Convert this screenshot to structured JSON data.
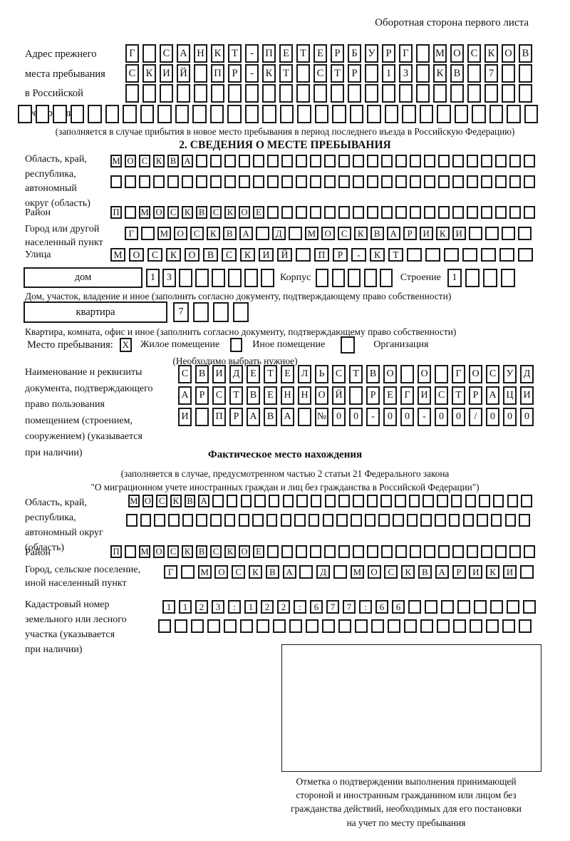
{
  "page": {
    "header_note": "Оборотная сторона первого листа"
  },
  "prev_address": {
    "label_lines": [
      "Адрес прежнего",
      "места пребывания",
      "в Российской",
      "Федерации"
    ],
    "rows": [
      {
        "text": "Г САНКТ-ПЕТЕРБУРГ МОСКОВ",
        "len": 24
      },
      {
        "text": "СКИЙ ПР-КТ СТР 13 КВ 7",
        "len": 24
      },
      {
        "text": "",
        "len": 24
      },
      {
        "text": "",
        "len": 30
      }
    ],
    "note": "(заполняется в случае прибытия в новое место пребывания в период последнего въезда в Российскую Федерацию)"
  },
  "section2": {
    "title": "2. СВЕДЕНИЯ О МЕСТЕ ПРЕБЫВАНИЯ",
    "region": {
      "label_lines": [
        "Область, край,",
        "республика,",
        "автономный",
        "округ (область)"
      ],
      "rows": [
        {
          "text": "МОСКВА",
          "len": 30
        },
        {
          "text": "",
          "len": 30
        }
      ]
    },
    "district": {
      "label": "Район",
      "row": {
        "text": "П МОСКВСКОЕ",
        "len": 30
      }
    },
    "city": {
      "label_lines": [
        "Город или другой",
        "населенный пункт"
      ],
      "row": {
        "text": "Г МОСКВА Д МОСКВАРИКИ",
        "len": 25
      }
    },
    "street": {
      "label": "Улица",
      "row": {
        "text": "МОСКОВСКИЙ ПР-КТ",
        "len": 23
      }
    },
    "house": {
      "box_label": "дом",
      "row": {
        "text": "13",
        "len": 8
      },
      "korpus_label": "Корпус",
      "korpus_row": {
        "text": "",
        "len": 5
      },
      "stroenie_label": "Строение",
      "stroenie_row": {
        "text": "1",
        "len": 4
      },
      "note": "Дом, участок, владение и иное (заполнить согласно документу, подтверждающему право собственности)"
    },
    "apartment": {
      "box_label": "квартира",
      "row": {
        "text": "7",
        "len": 4
      },
      "note": "Квартира, комната, офис и иное (заполнить согласно документу, подтверждающему право собственности)"
    },
    "stay": {
      "label": "Место пребывания:",
      "options": [
        {
          "label": "Жилое помещение",
          "mark": "X"
        },
        {
          "label": "Иное помещение",
          "mark": ""
        },
        {
          "label": "Организация",
          "mark": ""
        }
      ],
      "note": "(Необходимо выбрать нужное)"
    },
    "doc": {
      "label_lines": [
        "Наименование и реквизиты",
        "документа, подтверждающего",
        "право пользования",
        "помещением (строением,",
        "сооружением) (указывается",
        "при наличии)"
      ],
      "rows": [
        {
          "text": "СВИДЕТЕЛЬСТВО О ГОСУД",
          "len": 21
        },
        {
          "text": "АРСТВЕННОЙ РЕГИСТРАЦИ",
          "len": 21
        },
        {
          "text": "И ПРАВА №00-00-00/000",
          "len": 21
        }
      ]
    }
  },
  "fact": {
    "title": "Фактическое место нахождения",
    "note_lines": [
      "(заполняется в случае, предусмотренном частью 2 статьи 21 Федерального закона",
      "\"О миграционном учете иностранных граждан и лиц без гражданства в Российской Федерации\")"
    ],
    "region": {
      "label_lines": [
        "Область, край,",
        "республика,",
        "автономный округ",
        "(область)"
      ],
      "rows": [
        {
          "text": "МОСКВА",
          "len": 29
        },
        {
          "text": "",
          "len": 29
        }
      ]
    },
    "district": {
      "label": "Район",
      "row": {
        "text": "П МОСКВСКОЕ",
        "len": 30
      }
    },
    "city": {
      "label_lines": [
        "Город, сельское поселение,",
        "иной населенный пункт"
      ],
      "row": {
        "text": "Г МОСКВА Д МОСКВАРИКИ",
        "len": 22
      }
    },
    "cadastre": {
      "label_lines": [
        "Кадастровый номер",
        "земельного или лесного",
        "участка (указывается",
        "при наличии)"
      ],
      "rows": [
        {
          "text": "1123:122:677:66",
          "len": 23
        },
        {
          "text": "",
          "len": 23
        }
      ]
    },
    "stamp": {
      "note_lines": [
        "Отметка о подтверждении выполнения принимающей",
        "стороной и иностранным гражданином или лицом без",
        "гражданства действий, необходимых для его постановки",
        "на учет по месту пребывания"
      ]
    }
  }
}
